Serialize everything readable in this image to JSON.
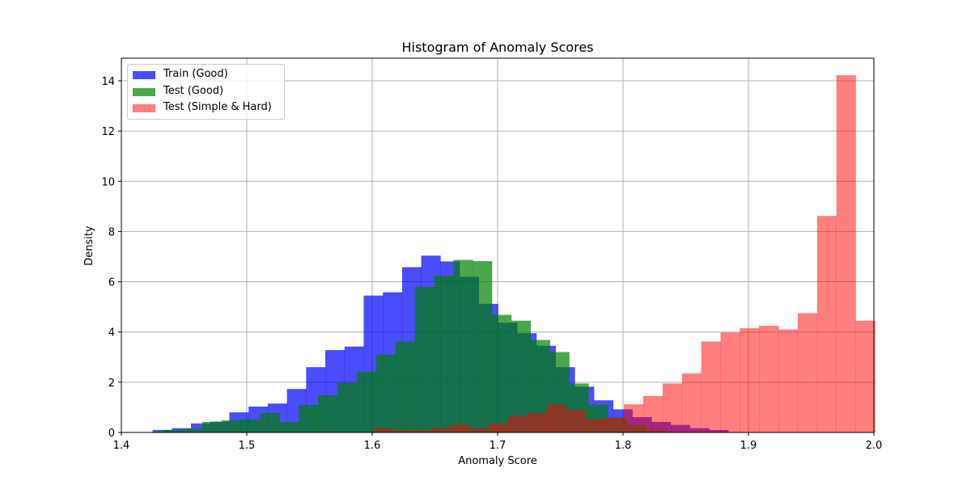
{
  "chart_data": {
    "type": "histogram",
    "title": "Histogram of Anomaly Scores",
    "xlabel": "Anomaly Score",
    "ylabel": "Density",
    "xlim": [
      1.4,
      2.0
    ],
    "ylim": [
      0,
      14.9
    ],
    "xticks": [
      "1.4",
      "1.5",
      "1.6",
      "1.7",
      "1.8",
      "1.9",
      "2.0"
    ],
    "yticks": [
      "0",
      "2",
      "4",
      "6",
      "8",
      "10",
      "12",
      "14"
    ],
    "grid": true,
    "legend_position": "top-left",
    "series": [
      {
        "name": "Train (Good)",
        "color": "#0000ff",
        "alpha": 0.7,
        "bin_start": 1.4249,
        "bin_width": 0.0153,
        "values": [
          0.1,
          0.17,
          0.36,
          0.43,
          0.8,
          1.03,
          1.15,
          1.73,
          2.6,
          3.28,
          3.42,
          5.45,
          5.58,
          6.58,
          7.04,
          6.81,
          6.2,
          5.12,
          4.37,
          3.95,
          3.45,
          2.6,
          1.82,
          1.28,
          0.92,
          0.61,
          0.42,
          0.3,
          0.17,
          0.1
        ]
      },
      {
        "name": "Test (Good)",
        "color": "#008000",
        "alpha": 0.7,
        "bin_start": 1.4337,
        "bin_width": 0.0154,
        "values": [
          0.1,
          0.15,
          0.42,
          0.48,
          0.52,
          0.78,
          0.42,
          1.1,
          1.48,
          1.98,
          2.42,
          3.1,
          3.62,
          5.8,
          6.24,
          6.87,
          6.82,
          4.68,
          4.45,
          3.68,
          3.2,
          1.95,
          1.1,
          0.6,
          0.3,
          0.1
        ]
      },
      {
        "name": "Test (Simple & Hard)",
        "color": "#ff0000",
        "alpha": 0.5,
        "bin_start": 1.6005,
        "bin_width": 0.0154,
        "values": [
          0.17,
          0.1,
          0.1,
          0.17,
          0.31,
          0.17,
          0.35,
          0.65,
          0.78,
          1.12,
          0.9,
          0.52,
          0.58,
          1.12,
          1.45,
          1.95,
          2.35,
          3.62,
          3.98,
          4.15,
          4.25,
          4.1,
          4.75,
          8.62,
          14.22,
          4.45
        ]
      }
    ]
  }
}
